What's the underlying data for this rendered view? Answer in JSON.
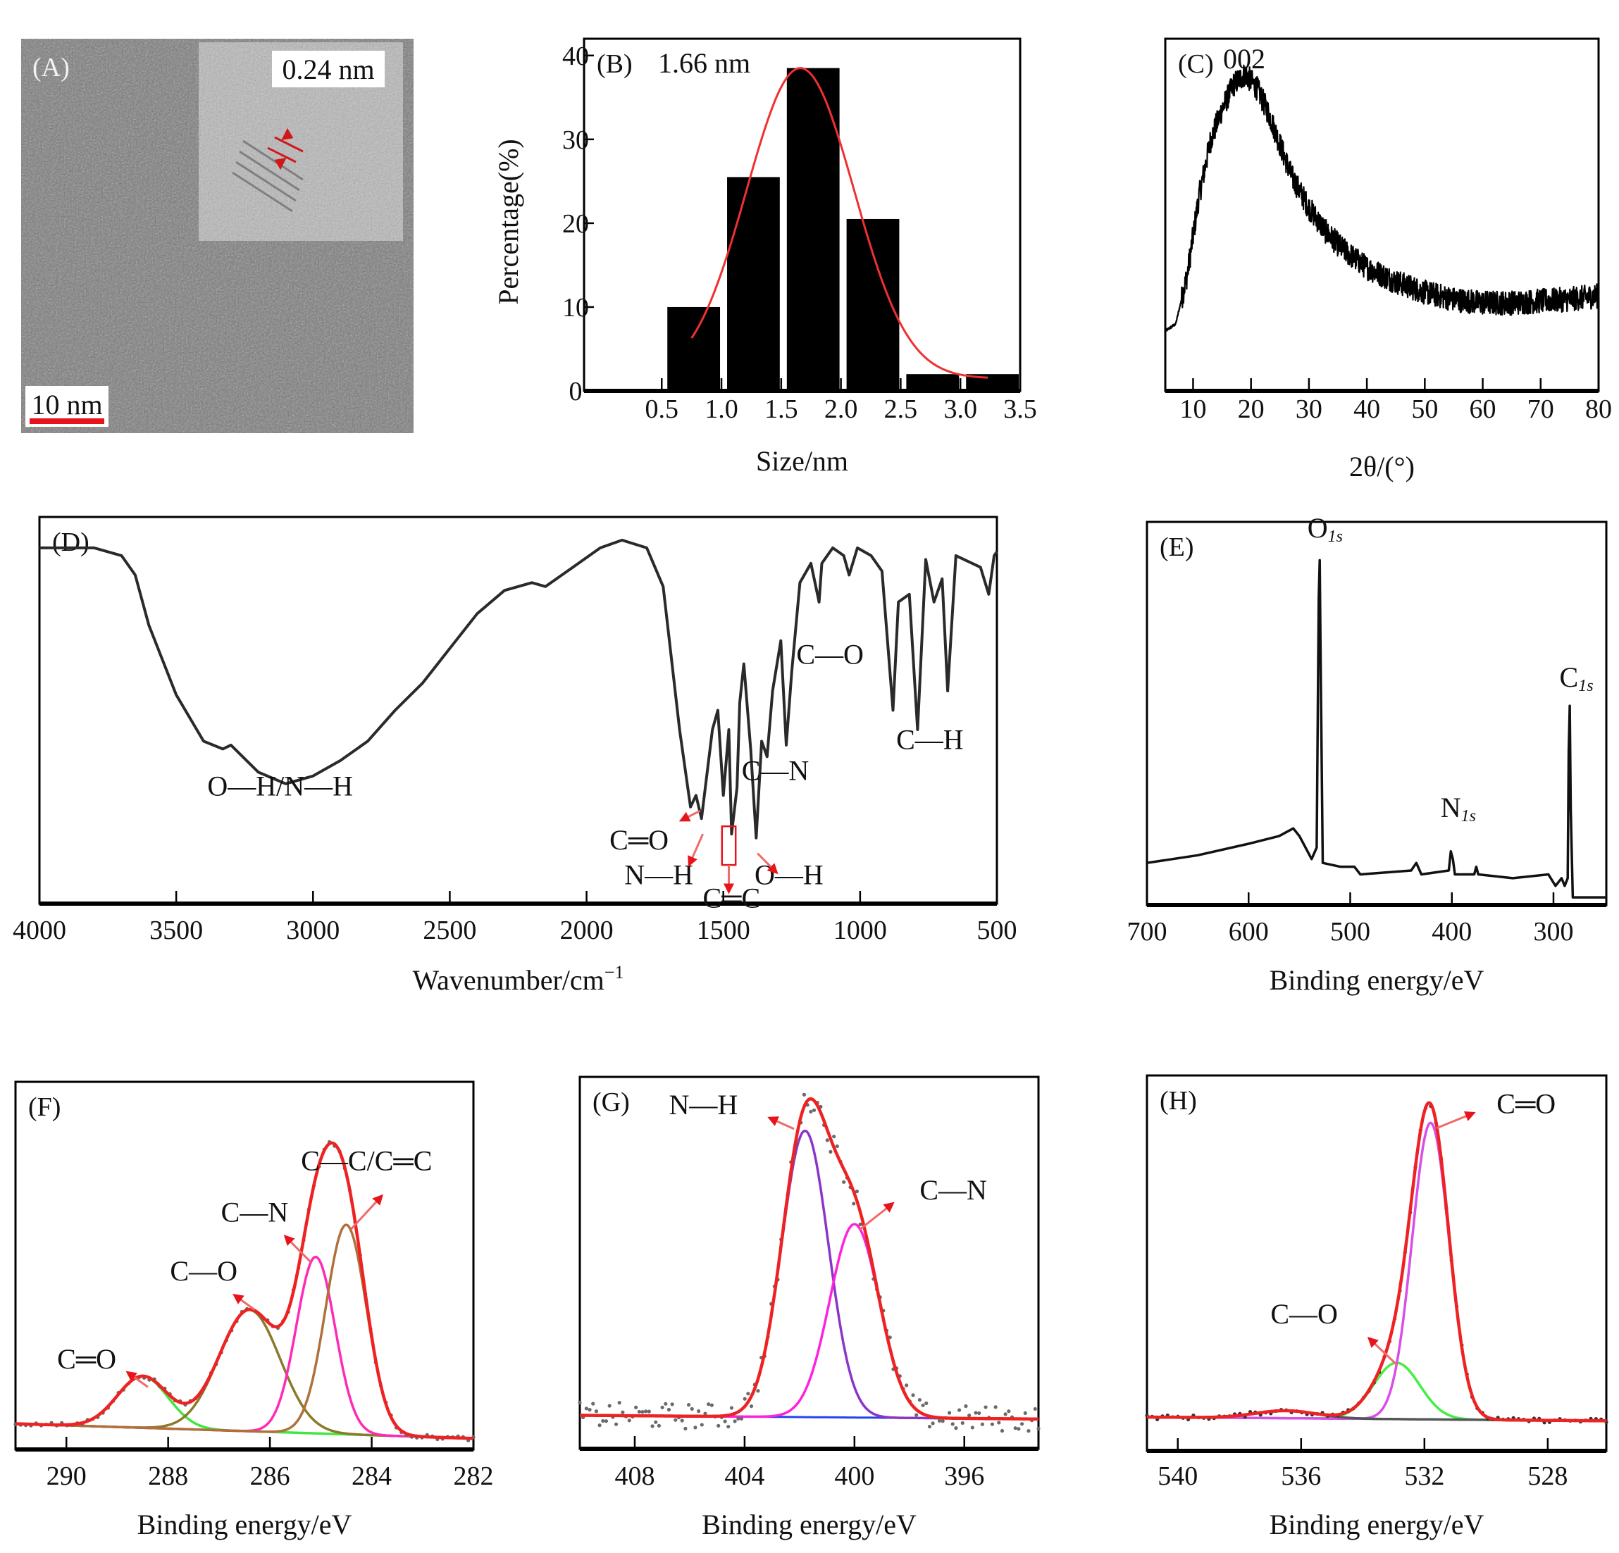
{
  "figure": {
    "panels": [
      "A",
      "B",
      "C",
      "D",
      "E",
      "F",
      "G",
      "H"
    ]
  },
  "panel_a": {
    "tag": "(A)",
    "type": "tem-micrograph",
    "inset_label": "0.24 nm",
    "scale_bar_label": "10 nm",
    "scale_bar_color": "#e8141c"
  },
  "chart_data": [
    {
      "id": "B",
      "type": "bar",
      "tag": "(B)",
      "annotation": "1.66 nm",
      "xlabel": "Size/nm",
      "ylabel": "Percentage(%)",
      "x_ticks": [
        "0.5",
        "1.0",
        "1.5",
        "2.0",
        "2.5",
        "3.0",
        "3.5"
      ],
      "x_tick_values": [
        0.5,
        1.0,
        1.5,
        2.0,
        2.5,
        3.0,
        3.5
      ],
      "y_ticks": [
        "0",
        "10",
        "20",
        "30",
        "40"
      ],
      "y_tick_values": [
        0,
        10,
        20,
        30,
        40
      ],
      "xlim": [
        -0.15,
        3.5
      ],
      "ylim": [
        0,
        42
      ],
      "bins": [
        [
          0.5,
          1.0
        ],
        [
          1.0,
          1.5
        ],
        [
          1.5,
          2.0
        ],
        [
          2.0,
          2.5
        ],
        [
          2.5,
          3.0
        ],
        [
          3.0,
          3.5
        ]
      ],
      "values": [
        10,
        25.5,
        38.5,
        20.5,
        2,
        2
      ],
      "bar_color": "#000000",
      "fit": {
        "type": "gaussian",
        "center": 1.66,
        "amplitude": 38.5,
        "sigma": 0.45,
        "baseline": 1.5,
        "x_range": [
          0.75,
          3.25
        ],
        "color": "#f03030"
      }
    },
    {
      "id": "C",
      "type": "line",
      "tag": "(C)",
      "annotation": "002",
      "xlabel": "2θ/(°)",
      "ylabel": "",
      "x_ticks": [
        "10",
        "20",
        "30",
        "40",
        "50",
        "60",
        "70",
        "80"
      ],
      "x_tick_values": [
        10,
        20,
        30,
        40,
        50,
        60,
        70,
        80
      ],
      "xlim": [
        5.2,
        80
      ],
      "ylim": [
        0,
        1
      ],
      "profile": [
        [
          5.2,
          0.17
        ],
        [
          7,
          0.19
        ],
        [
          9,
          0.33
        ],
        [
          11,
          0.55
        ],
        [
          13,
          0.71
        ],
        [
          15,
          0.8
        ],
        [
          17,
          0.87
        ],
        [
          19,
          0.9
        ],
        [
          21,
          0.86
        ],
        [
          23,
          0.79
        ],
        [
          25,
          0.7
        ],
        [
          27,
          0.61
        ],
        [
          30,
          0.52
        ],
        [
          33,
          0.45
        ],
        [
          36,
          0.4
        ],
        [
          40,
          0.35
        ],
        [
          45,
          0.31
        ],
        [
          50,
          0.28
        ],
        [
          55,
          0.26
        ],
        [
          60,
          0.25
        ],
        [
          65,
          0.25
        ],
        [
          70,
          0.255
        ],
        [
          75,
          0.26
        ],
        [
          80,
          0.27
        ]
      ],
      "noise": 0.035,
      "line_color": "#000000"
    },
    {
      "id": "D",
      "type": "line",
      "tag": "(D)",
      "xlabel": "Wavenumber/cm",
      "xlabel_sup": "−1",
      "x_ticks": [
        "4000",
        "3500",
        "3000",
        "2500",
        "2000",
        "1500",
        "1000",
        "500"
      ],
      "x_tick_values": [
        4000,
        3500,
        3000,
        2500,
        2000,
        1500,
        1000,
        500
      ],
      "xlim": [
        4000,
        500
      ],
      "ylim": [
        0,
        1
      ],
      "series": [
        [
          4000,
          0.92
        ],
        [
          3800,
          0.92
        ],
        [
          3700,
          0.9
        ],
        [
          3650,
          0.85
        ],
        [
          3600,
          0.72
        ],
        [
          3500,
          0.54
        ],
        [
          3400,
          0.42
        ],
        [
          3330,
          0.4
        ],
        [
          3300,
          0.41
        ],
        [
          3200,
          0.34
        ],
        [
          3100,
          0.31
        ],
        [
          3000,
          0.33
        ],
        [
          2900,
          0.37
        ],
        [
          2800,
          0.42
        ],
        [
          2700,
          0.5
        ],
        [
          2600,
          0.57
        ],
        [
          2500,
          0.66
        ],
        [
          2400,
          0.75
        ],
        [
          2300,
          0.81
        ],
        [
          2200,
          0.83
        ],
        [
          2150,
          0.82
        ],
        [
          2050,
          0.87
        ],
        [
          1950,
          0.92
        ],
        [
          1870,
          0.94
        ],
        [
          1780,
          0.92
        ],
        [
          1720,
          0.82
        ],
        [
          1660,
          0.45
        ],
        [
          1620,
          0.25
        ],
        [
          1600,
          0.28
        ],
        [
          1580,
          0.22
        ],
        [
          1540,
          0.45
        ],
        [
          1520,
          0.5
        ],
        [
          1500,
          0.28
        ],
        [
          1480,
          0.45
        ],
        [
          1470,
          0.18
        ],
        [
          1450,
          0.3
        ],
        [
          1440,
          0.52
        ],
        [
          1425,
          0.62
        ],
        [
          1400,
          0.4
        ],
        [
          1380,
          0.17
        ],
        [
          1360,
          0.42
        ],
        [
          1340,
          0.38
        ],
        [
          1320,
          0.55
        ],
        [
          1290,
          0.68
        ],
        [
          1270,
          0.41
        ],
        [
          1250,
          0.6
        ],
        [
          1220,
          0.83
        ],
        [
          1180,
          0.88
        ],
        [
          1150,
          0.78
        ],
        [
          1140,
          0.88
        ],
        [
          1100,
          0.92
        ],
        [
          1060,
          0.9
        ],
        [
          1040,
          0.85
        ],
        [
          1010,
          0.92
        ],
        [
          960,
          0.9
        ],
        [
          920,
          0.86
        ],
        [
          880,
          0.5
        ],
        [
          860,
          0.78
        ],
        [
          820,
          0.8
        ],
        [
          790,
          0.45
        ],
        [
          760,
          0.89
        ],
        [
          730,
          0.78
        ],
        [
          700,
          0.84
        ],
        [
          680,
          0.55
        ],
        [
          650,
          0.9
        ],
        [
          560,
          0.87
        ],
        [
          530,
          0.8
        ],
        [
          510,
          0.9
        ],
        [
          500,
          0.91
        ]
      ],
      "line_color": "#2a2a2a",
      "annotations": [
        {
          "text": "O—H/N—H",
          "x": 3120,
          "y": 0.28,
          "anchor": "middle"
        },
        {
          "text": "C═O",
          "x": 1700,
          "y": 0.14,
          "anchor": "end",
          "arrow_from": [
            1585,
            0.24
          ],
          "arrow_to": [
            1655,
            0.215
          ]
        },
        {
          "text": "N—H",
          "x": 1610,
          "y": 0.05,
          "anchor": "end",
          "arrow_from": [
            1575,
            0.18
          ],
          "arrow_to": [
            1625,
            0.1
          ]
        },
        {
          "text": "C═C",
          "x": 1470,
          "y": -0.01,
          "anchor": "middle"
        },
        {
          "text": "O—H",
          "x": 1260,
          "y": 0.05,
          "anchor": "middle",
          "arrow_from": [
            1375,
            0.13
          ],
          "arrow_to": [
            1305,
            0.08
          ]
        },
        {
          "text": "C—N",
          "x": 1310,
          "y": 0.32,
          "anchor": "middle"
        },
        {
          "text": "C—O",
          "x": 1110,
          "y": 0.62,
          "anchor": "middle"
        },
        {
          "text": "C—H",
          "x": 745,
          "y": 0.4,
          "anchor": "middle"
        }
      ],
      "highlight_box": {
        "x_range": [
          1505,
          1455
        ],
        "y_range": [
          0.2,
          0.1
        ],
        "arrow_to_y": 0.03,
        "color": "#e8141c"
      }
    },
    {
      "id": "E",
      "type": "line",
      "tag": "(E)",
      "xlabel": "Binding energy/eV",
      "x_ticks": [
        "700",
        "600",
        "500",
        "400",
        "300"
      ],
      "x_tick_values": [
        700,
        600,
        500,
        400,
        300
      ],
      "xlim": [
        700,
        248
      ],
      "ylim": [
        0,
        1
      ],
      "series": [
        [
          700,
          0.11
        ],
        [
          650,
          0.13
        ],
        [
          600,
          0.16
        ],
        [
          570,
          0.18
        ],
        [
          556,
          0.2
        ],
        [
          550,
          0.18
        ],
        [
          538,
          0.12
        ],
        [
          533,
          0.15
        ],
        [
          531,
          0.8
        ],
        [
          530,
          0.9
        ],
        [
          529,
          0.6
        ],
        [
          527,
          0.11
        ],
        [
          510,
          0.1
        ],
        [
          496,
          0.1
        ],
        [
          490,
          0.08
        ],
        [
          440,
          0.09
        ],
        [
          435,
          0.11
        ],
        [
          430,
          0.08
        ],
        [
          403,
          0.09
        ],
        [
          401,
          0.14
        ],
        [
          399,
          0.12
        ],
        [
          397,
          0.08
        ],
        [
          378,
          0.08
        ],
        [
          376,
          0.1
        ],
        [
          374,
          0.08
        ],
        [
          340,
          0.07
        ],
        [
          305,
          0.08
        ],
        [
          298,
          0.05
        ],
        [
          292,
          0.07
        ],
        [
          289,
          0.05
        ],
        [
          286,
          0.07
        ],
        [
          285,
          0.4
        ],
        [
          284,
          0.52
        ],
        [
          283,
          0.25
        ],
        [
          281,
          0.02
        ],
        [
          248,
          0.02
        ]
      ],
      "line_color": "#111111",
      "annotations": [
        {
          "text": "O",
          "sub": "1s",
          "x": 531,
          "y": 0.96
        },
        {
          "text": "N",
          "sub": "1s",
          "x": 400,
          "y": 0.23
        },
        {
          "text": "C",
          "sub": "1s",
          "x": 283,
          "y": 0.57
        }
      ]
    },
    {
      "id": "F",
      "type": "line",
      "tag": "(F)",
      "xlabel": "Binding energy/eV",
      "x_ticks": [
        "290",
        "288",
        "286",
        "284",
        "282"
      ],
      "x_tick_values": [
        290,
        288,
        286,
        284,
        282
      ],
      "xlim": [
        291,
        282
      ],
      "ylim": [
        0,
        1
      ],
      "baseline": {
        "start": 0.07,
        "end": 0.03
      },
      "components": [
        {
          "name": "C═O",
          "center": 288.5,
          "height": 0.14,
          "sigma": 0.5,
          "color": "#3fe83f"
        },
        {
          "name": "C—O",
          "center": 286.4,
          "height": 0.33,
          "sigma": 0.6,
          "color": "#8b7a2a"
        },
        {
          "name": "C—N",
          "center": 285.1,
          "height": 0.48,
          "sigma": 0.38,
          "color": "#ff2ab5"
        },
        {
          "name": "C—C/C═C",
          "center": 284.5,
          "height": 0.57,
          "sigma": 0.4,
          "color": "#b0703a"
        }
      ],
      "envelope_color": "#ee2222",
      "points_color": "#6a6a6a",
      "annotations": [
        {
          "text": "C═O",
          "x": 289.6,
          "y": 0.22,
          "arrow_from": [
            288.4,
            0.17
          ],
          "arrow_to": [
            288.8,
            0.21
          ]
        },
        {
          "text": "C—O",
          "x": 287.3,
          "y": 0.46,
          "arrow_from": [
            286.3,
            0.38
          ],
          "arrow_to": [
            286.7,
            0.42
          ]
        },
        {
          "text": "C—N",
          "x": 286.3,
          "y": 0.62,
          "arrow_from": [
            285.2,
            0.51
          ],
          "arrow_to": [
            285.7,
            0.58
          ]
        },
        {
          "text": "C—C/C═C",
          "x": 284.1,
          "y": 0.76,
          "arrow_from": [
            284.4,
            0.6
          ],
          "arrow_to": [
            283.8,
            0.69
          ]
        }
      ]
    },
    {
      "id": "G",
      "type": "line",
      "tag": "(G)",
      "xlabel": "Binding energy/eV",
      "x_ticks": [
        "408",
        "404",
        "400",
        "396"
      ],
      "x_tick_values": [
        408,
        404,
        400,
        396
      ],
      "xlim": [
        410,
        393.3
      ],
      "ylim": [
        0,
        1
      ],
      "baseline": {
        "start": 0.09,
        "end": 0.08
      },
      "components": [
        {
          "name": "N—H",
          "center": 401.8,
          "height": 0.77,
          "sigma": 0.85,
          "color": "#8a35c8"
        },
        {
          "name": "C—N",
          "center": 400,
          "height": 0.52,
          "sigma": 0.9,
          "color": "#ff22dd"
        }
      ],
      "envelope_color": "#ee2222",
      "baseline_color": "#2244ee",
      "points_color": "#6a6a6a",
      "annotations": [
        {
          "text": "N—H",
          "x": 405.5,
          "y": 0.9,
          "arrow_from": [
            402.2,
            0.86
          ],
          "arrow_to": [
            403.1,
            0.89
          ]
        },
        {
          "text": "C—N",
          "x": 396.4,
          "y": 0.67,
          "arrow_from": [
            399.8,
            0.59
          ],
          "arrow_to": [
            398.6,
            0.66
          ]
        }
      ]
    },
    {
      "id": "H",
      "type": "line",
      "tag": "(H)",
      "xlabel": "Binding energy/eV",
      "x_ticks": [
        "540",
        "536",
        "532",
        "528"
      ],
      "x_tick_values": [
        540,
        536,
        532,
        528
      ],
      "xlim": [
        541,
        526.1
      ],
      "ylim": [
        0,
        1
      ],
      "baseline": {
        "start": 0.09,
        "end": 0.08
      },
      "components": [
        {
          "name": "C—O",
          "center": 532.9,
          "height": 0.15,
          "sigma": 0.75,
          "color": "#44ee44"
        },
        {
          "name": "C═O",
          "center": 531.8,
          "height": 0.79,
          "sigma": 0.6,
          "color": "#d84ee8"
        },
        {
          "name": "satellite",
          "center": 536.5,
          "height": 0.02,
          "sigma": 1.0,
          "color": "#555555"
        }
      ],
      "envelope_color": "#ee2222",
      "baseline_color": "#2244ee",
      "points_color": "#333333",
      "annotations": [
        {
          "text": "C═O",
          "x": 528.7,
          "y": 0.9,
          "arrow_from": [
            531.6,
            0.86
          ],
          "arrow_to": [
            530.4,
            0.9
          ]
        },
        {
          "text": "C—O",
          "x": 535.9,
          "y": 0.34,
          "arrow_from": [
            532.9,
            0.23
          ],
          "arrow_to": [
            533.8,
            0.3
          ]
        }
      ]
    }
  ]
}
